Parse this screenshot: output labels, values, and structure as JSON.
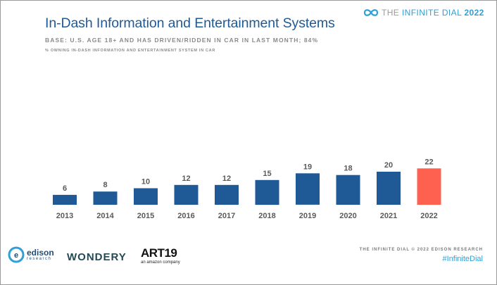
{
  "header": {
    "title": "In-Dash Information and Entertainment Systems",
    "base": "BASE: U.S. AGE 18+ AND HAS DRIVEN/RIDDEN IN CAR IN LAST MONTH; 84%",
    "subtitle": "% OWNING IN-DASH INFORMATION AND ENTERTAINMENT SYSTEM IN CAR"
  },
  "brand": {
    "the": "THE",
    "infinite_dial": "INFINITE DIAL",
    "year": "2022"
  },
  "chart_data": {
    "type": "bar",
    "categories": [
      "2013",
      "2014",
      "2015",
      "2016",
      "2017",
      "2018",
      "2019",
      "2020",
      "2021",
      "2022"
    ],
    "values": [
      6,
      8,
      10,
      12,
      12,
      15,
      19,
      18,
      20,
      22
    ],
    "title": "In-Dash Information and Entertainment Systems",
    "subtitle": "% OWNING IN-DASH INFORMATION AND ENTERTAINMENT SYSTEM IN CAR",
    "xlabel": "",
    "ylabel": "",
    "ylim": [
      0,
      100
    ],
    "grid": false,
    "colors": {
      "default": "#1f5a96",
      "highlight": "#ff6150"
    },
    "highlight_category": "2022"
  },
  "footer": {
    "edison_name": "edison",
    "edison_sub": "research",
    "wondery": "WONDERY",
    "art19_name": "ART19",
    "art19_sub": "an amazon company",
    "credit": "THE INFINITE DIAL  © 2022 EDISON RESEARCH",
    "hashtag": "#InfiniteDial"
  }
}
